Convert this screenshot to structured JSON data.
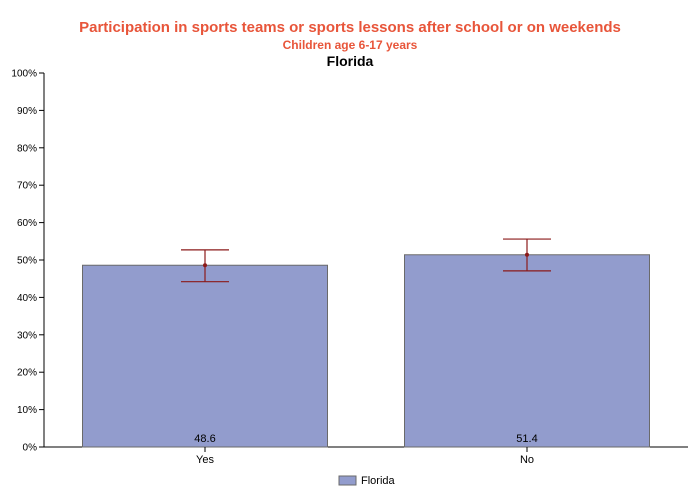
{
  "colors": {
    "title": "#e8553a",
    "bar_fill": "#929ccd",
    "bar_stroke": "#6a6a6a",
    "error_bar": "#8b1a1a",
    "axis": "#000000"
  },
  "chart_data": {
    "type": "bar",
    "title": "Participation in sports teams or sports lessons after school or on weekends",
    "subtitle": "Children age 6-17 years",
    "state_label": "Florida",
    "categories": [
      "Yes",
      "No"
    ],
    "series": [
      {
        "name": "Florida",
        "values": [
          48.6,
          51.4
        ],
        "value_labels": [
          "48.6",
          "51.4"
        ],
        "ci_lower": [
          44.2,
          47.1
        ],
        "ci_upper": [
          52.7,
          55.6
        ]
      }
    ],
    "yticks": [
      "0%",
      "10%",
      "20%",
      "30%",
      "40%",
      "50%",
      "60%",
      "70%",
      "80%",
      "90%",
      "100%"
    ],
    "ylim": [
      0,
      100
    ],
    "grid": false,
    "legend": "bottom"
  }
}
